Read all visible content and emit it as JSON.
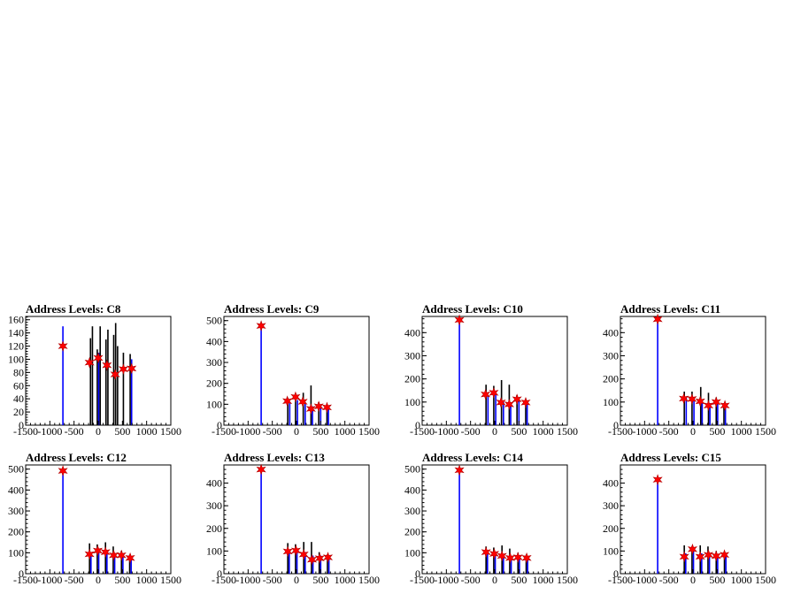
{
  "chart_data": [
    {
      "type": "histogram",
      "title": "Address Levels: C8",
      "xlim": [
        -1500,
        1500
      ],
      "ylim": [
        0,
        165
      ],
      "x_ticks": [
        -1500,
        -1000,
        -500,
        0,
        500,
        1000,
        1500
      ],
      "y_ticks": [
        0,
        20,
        40,
        60,
        80,
        100,
        120,
        140,
        160
      ],
      "bars": [
        {
          "x": -730,
          "value": 150,
          "color": "#0000ff"
        },
        {
          "x": -160,
          "value": 132,
          "color": "#000000"
        },
        {
          "x": -120,
          "value": 150,
          "color": "#000000"
        },
        {
          "x": -20,
          "value": 115,
          "color": "#000000"
        },
        {
          "x": 10,
          "value": 110,
          "color": "#0000ff"
        },
        {
          "x": 40,
          "value": 150,
          "color": "#000000"
        },
        {
          "x": 160,
          "value": 130,
          "color": "#000000"
        },
        {
          "x": 200,
          "value": 145,
          "color": "#000000"
        },
        {
          "x": 320,
          "value": 137,
          "color": "#000000"
        },
        {
          "x": 360,
          "value": 155,
          "color": "#000000"
        },
        {
          "x": 400,
          "value": 120,
          "color": "#000000"
        },
        {
          "x": 520,
          "value": 110,
          "color": "#000000"
        },
        {
          "x": 660,
          "value": 108,
          "color": "#000000"
        },
        {
          "x": 690,
          "value": 100,
          "color": "#0000ff"
        }
      ],
      "peaks": [
        {
          "x": -730,
          "y": 120
        },
        {
          "x": -180,
          "y": 95
        },
        {
          "x": 0,
          "y": 102
        },
        {
          "x": 180,
          "y": 91
        },
        {
          "x": 350,
          "y": 77
        },
        {
          "x": 520,
          "y": 85
        },
        {
          "x": 690,
          "y": 86
        }
      ]
    },
    {
      "type": "histogram",
      "title": "Address Levels: C9",
      "xlim": [
        -1500,
        1500
      ],
      "ylim": [
        0,
        520
      ],
      "x_ticks": [
        -1500,
        -1000,
        -500,
        0,
        500,
        1000,
        1500
      ],
      "y_ticks": [
        0,
        100,
        200,
        300,
        400,
        500
      ],
      "bars": [
        {
          "x": -730,
          "value": 470,
          "color": "#0000ff"
        },
        {
          "x": -180,
          "value": 130,
          "color": "#000000"
        },
        {
          "x": -140,
          "value": 110,
          "color": "#0000ff"
        },
        {
          "x": -20,
          "value": 140,
          "color": "#000000"
        },
        {
          "x": 20,
          "value": 120,
          "color": "#0000ff"
        },
        {
          "x": 140,
          "value": 155,
          "color": "#000000"
        },
        {
          "x": 180,
          "value": 110,
          "color": "#0000ff"
        },
        {
          "x": 300,
          "value": 190,
          "color": "#000000"
        },
        {
          "x": 330,
          "value": 90,
          "color": "#0000ff"
        },
        {
          "x": 460,
          "value": 110,
          "color": "#000000"
        },
        {
          "x": 500,
          "value": 95,
          "color": "#0000ff"
        },
        {
          "x": 630,
          "value": 95,
          "color": "#000000"
        },
        {
          "x": 660,
          "value": 90,
          "color": "#0000ff"
        }
      ],
      "peaks": [
        {
          "x": -730,
          "y": 475
        },
        {
          "x": -190,
          "y": 115
        },
        {
          "x": -20,
          "y": 135
        },
        {
          "x": 130,
          "y": 112
        },
        {
          "x": 300,
          "y": 78
        },
        {
          "x": 460,
          "y": 90
        },
        {
          "x": 630,
          "y": 85
        }
      ]
    },
    {
      "type": "histogram",
      "title": "Address Levels: C10",
      "xlim": [
        -1500,
        1500
      ],
      "ylim": [
        0,
        470
      ],
      "x_ticks": [
        -1500,
        -1000,
        -500,
        0,
        500,
        1000,
        1500
      ],
      "y_ticks": [
        0,
        100,
        200,
        300,
        400
      ],
      "bars": [
        {
          "x": -730,
          "value": 455,
          "color": "#0000ff"
        },
        {
          "x": -180,
          "value": 175,
          "color": "#000000"
        },
        {
          "x": -140,
          "value": 130,
          "color": "#0000ff"
        },
        {
          "x": -20,
          "value": 170,
          "color": "#000000"
        },
        {
          "x": 20,
          "value": 140,
          "color": "#0000ff"
        },
        {
          "x": 140,
          "value": 195,
          "color": "#000000"
        },
        {
          "x": 180,
          "value": 100,
          "color": "#0000ff"
        },
        {
          "x": 300,
          "value": 175,
          "color": "#000000"
        },
        {
          "x": 330,
          "value": 90,
          "color": "#0000ff"
        },
        {
          "x": 460,
          "value": 130,
          "color": "#000000"
        },
        {
          "x": 500,
          "value": 110,
          "color": "#0000ff"
        },
        {
          "x": 640,
          "value": 110,
          "color": "#000000"
        },
        {
          "x": 670,
          "value": 100,
          "color": "#0000ff"
        }
      ],
      "peaks": [
        {
          "x": -730,
          "y": 455
        },
        {
          "x": -190,
          "y": 133
        },
        {
          "x": -20,
          "y": 140
        },
        {
          "x": 130,
          "y": 98
        },
        {
          "x": 300,
          "y": 90
        },
        {
          "x": 460,
          "y": 112
        },
        {
          "x": 640,
          "y": 98
        }
      ]
    },
    {
      "type": "histogram",
      "title": "Address Levels: C11",
      "xlim": [
        -1500,
        1500
      ],
      "ylim": [
        0,
        470
      ],
      "x_ticks": [
        -1500,
        -1000,
        -500,
        0,
        500,
        1000,
        1500
      ],
      "y_ticks": [
        0,
        100,
        200,
        300,
        400
      ],
      "bars": [
        {
          "x": -730,
          "value": 455,
          "color": "#0000ff"
        },
        {
          "x": -180,
          "value": 145,
          "color": "#000000"
        },
        {
          "x": -140,
          "value": 120,
          "color": "#0000ff"
        },
        {
          "x": -20,
          "value": 145,
          "color": "#000000"
        },
        {
          "x": 20,
          "value": 115,
          "color": "#0000ff"
        },
        {
          "x": 160,
          "value": 165,
          "color": "#000000"
        },
        {
          "x": 190,
          "value": 100,
          "color": "#0000ff"
        },
        {
          "x": 320,
          "value": 140,
          "color": "#000000"
        },
        {
          "x": 350,
          "value": 95,
          "color": "#0000ff"
        },
        {
          "x": 480,
          "value": 120,
          "color": "#000000"
        },
        {
          "x": 510,
          "value": 105,
          "color": "#0000ff"
        },
        {
          "x": 640,
          "value": 95,
          "color": "#000000"
        },
        {
          "x": 670,
          "value": 90,
          "color": "#0000ff"
        }
      ],
      "peaks": [
        {
          "x": -730,
          "y": 458
        },
        {
          "x": -190,
          "y": 115
        },
        {
          "x": -20,
          "y": 113
        },
        {
          "x": 150,
          "y": 103
        },
        {
          "x": 320,
          "y": 85
        },
        {
          "x": 480,
          "y": 100
        },
        {
          "x": 660,
          "y": 85
        }
      ]
    },
    {
      "type": "histogram",
      "title": "Address Levels: C12",
      "xlim": [
        -1500,
        1500
      ],
      "ylim": [
        0,
        520
      ],
      "x_ticks": [
        -1500,
        -1000,
        -500,
        0,
        500,
        1000,
        1500
      ],
      "y_ticks": [
        0,
        100,
        200,
        300,
        400,
        500
      ],
      "bars": [
        {
          "x": -730,
          "value": 495,
          "color": "#0000ff"
        },
        {
          "x": -180,
          "value": 145,
          "color": "#000000"
        },
        {
          "x": -150,
          "value": 100,
          "color": "#0000ff"
        },
        {
          "x": -20,
          "value": 140,
          "color": "#000000"
        },
        {
          "x": 10,
          "value": 110,
          "color": "#0000ff"
        },
        {
          "x": 150,
          "value": 150,
          "color": "#000000"
        },
        {
          "x": 180,
          "value": 100,
          "color": "#0000ff"
        },
        {
          "x": 310,
          "value": 130,
          "color": "#000000"
        },
        {
          "x": 340,
          "value": 95,
          "color": "#0000ff"
        },
        {
          "x": 480,
          "value": 110,
          "color": "#000000"
        },
        {
          "x": 510,
          "value": 95,
          "color": "#0000ff"
        },
        {
          "x": 650,
          "value": 90,
          "color": "#000000"
        },
        {
          "x": 680,
          "value": 80,
          "color": "#0000ff"
        }
      ],
      "peaks": [
        {
          "x": -730,
          "y": 492
        },
        {
          "x": -180,
          "y": 93
        },
        {
          "x": -10,
          "y": 110
        },
        {
          "x": 150,
          "y": 103
        },
        {
          "x": 320,
          "y": 88
        },
        {
          "x": 480,
          "y": 88
        },
        {
          "x": 660,
          "y": 75
        }
      ]
    },
    {
      "type": "histogram",
      "title": "Address Levels: C13",
      "xlim": [
        -1500,
        1500
      ],
      "ylim": [
        0,
        480
      ],
      "x_ticks": [
        -1500,
        -1000,
        -500,
        0,
        500,
        1000,
        1500
      ],
      "y_ticks": [
        0,
        100,
        200,
        300,
        400
      ],
      "bars": [
        {
          "x": -730,
          "value": 460,
          "color": "#0000ff"
        },
        {
          "x": -180,
          "value": 135,
          "color": "#000000"
        },
        {
          "x": -150,
          "value": 100,
          "color": "#0000ff"
        },
        {
          "x": -20,
          "value": 130,
          "color": "#000000"
        },
        {
          "x": 10,
          "value": 105,
          "color": "#0000ff"
        },
        {
          "x": 150,
          "value": 140,
          "color": "#000000"
        },
        {
          "x": 180,
          "value": 95,
          "color": "#0000ff"
        },
        {
          "x": 310,
          "value": 140,
          "color": "#000000"
        },
        {
          "x": 340,
          "value": 80,
          "color": "#0000ff"
        },
        {
          "x": 470,
          "value": 95,
          "color": "#000000"
        },
        {
          "x": 500,
          "value": 80,
          "color": "#0000ff"
        },
        {
          "x": 640,
          "value": 85,
          "color": "#000000"
        },
        {
          "x": 670,
          "value": 75,
          "color": "#0000ff"
        }
      ],
      "peaks": [
        {
          "x": -730,
          "y": 460
        },
        {
          "x": -180,
          "y": 98
        },
        {
          "x": -10,
          "y": 102
        },
        {
          "x": 150,
          "y": 85
        },
        {
          "x": 320,
          "y": 62
        },
        {
          "x": 480,
          "y": 68
        },
        {
          "x": 650,
          "y": 72
        }
      ]
    },
    {
      "type": "histogram",
      "title": "Address Levels: C14",
      "xlim": [
        -1500,
        1500
      ],
      "ylim": [
        0,
        520
      ],
      "x_ticks": [
        -1500,
        -1000,
        -500,
        0,
        500,
        1000,
        1500
      ],
      "y_ticks": [
        0,
        100,
        200,
        300,
        400,
        500
      ],
      "bars": [
        {
          "x": -730,
          "value": 495,
          "color": "#0000ff"
        },
        {
          "x": -180,
          "value": 130,
          "color": "#000000"
        },
        {
          "x": -150,
          "value": 105,
          "color": "#0000ff"
        },
        {
          "x": -20,
          "value": 125,
          "color": "#000000"
        },
        {
          "x": 10,
          "value": 95,
          "color": "#0000ff"
        },
        {
          "x": 150,
          "value": 135,
          "color": "#000000"
        },
        {
          "x": 180,
          "value": 90,
          "color": "#0000ff"
        },
        {
          "x": 310,
          "value": 120,
          "color": "#000000"
        },
        {
          "x": 340,
          "value": 80,
          "color": "#0000ff"
        },
        {
          "x": 480,
          "value": 100,
          "color": "#000000"
        },
        {
          "x": 510,
          "value": 85,
          "color": "#0000ff"
        },
        {
          "x": 650,
          "value": 90,
          "color": "#000000"
        },
        {
          "x": 680,
          "value": 80,
          "color": "#0000ff"
        }
      ],
      "peaks": [
        {
          "x": -730,
          "y": 495
        },
        {
          "x": -180,
          "y": 103
        },
        {
          "x": -10,
          "y": 95
        },
        {
          "x": 150,
          "y": 85
        },
        {
          "x": 320,
          "y": 75
        },
        {
          "x": 480,
          "y": 78
        },
        {
          "x": 660,
          "y": 75
        }
      ]
    },
    {
      "type": "histogram",
      "title": "Address Levels: C15",
      "xlim": [
        -1500,
        1500
      ],
      "ylim": [
        0,
        480
      ],
      "x_ticks": [
        -1500,
        -1000,
        -500,
        0,
        500,
        1000,
        1500
      ],
      "y_ticks": [
        0,
        100,
        200,
        300,
        400
      ],
      "bars": [
        {
          "x": -730,
          "value": 420,
          "color": "#0000ff"
        },
        {
          "x": -180,
          "value": 125,
          "color": "#000000"
        },
        {
          "x": -150,
          "value": 90,
          "color": "#0000ff"
        },
        {
          "x": -20,
          "value": 120,
          "color": "#000000"
        },
        {
          "x": 10,
          "value": 110,
          "color": "#0000ff"
        },
        {
          "x": 150,
          "value": 125,
          "color": "#000000"
        },
        {
          "x": 180,
          "value": 90,
          "color": "#0000ff"
        },
        {
          "x": 310,
          "value": 120,
          "color": "#000000"
        },
        {
          "x": 340,
          "value": 85,
          "color": "#0000ff"
        },
        {
          "x": 480,
          "value": 100,
          "color": "#000000"
        },
        {
          "x": 510,
          "value": 80,
          "color": "#0000ff"
        },
        {
          "x": 650,
          "value": 90,
          "color": "#000000"
        },
        {
          "x": 680,
          "value": 85,
          "color": "#0000ff"
        }
      ],
      "peaks": [
        {
          "x": -730,
          "y": 415
        },
        {
          "x": -180,
          "y": 75
        },
        {
          "x": -10,
          "y": 108
        },
        {
          "x": 150,
          "y": 75
        },
        {
          "x": 320,
          "y": 83
        },
        {
          "x": 480,
          "y": 78
        },
        {
          "x": 650,
          "y": 83
        }
      ]
    }
  ],
  "colors": {
    "background": "#ffffff",
    "axis": "#000000",
    "bar_primary": "#0000ff",
    "bar_secondary": "#000000",
    "peak_marker": "#ff0000"
  }
}
